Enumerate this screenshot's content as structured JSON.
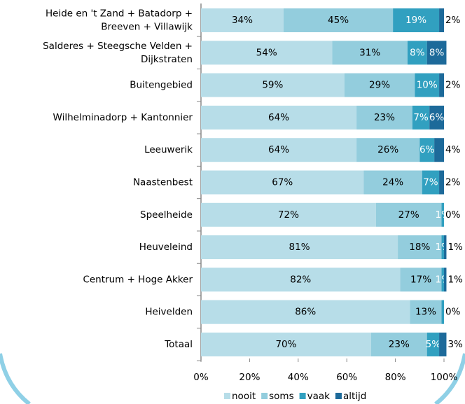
{
  "chart_data": {
    "type": "stacked-bar-horizontal",
    "categories": [
      "Heide en 't Zand + Batadorp +\nBreeven + Villawijk",
      "Salderes + Steegsche Velden +\nDijkstraten",
      "Buitengebied",
      "Wilhelminadorp + Kantonnier",
      "Leeuwerik",
      "Naastenbest",
      "Speelheide",
      "Heuveleind",
      "Centrum + Hoge Akker",
      "Heivelden",
      "Totaal"
    ],
    "series": [
      {
        "name": "nooit",
        "color": "#b7dde8",
        "values": [
          34,
          54,
          59,
          64,
          64,
          67,
          72,
          81,
          82,
          86,
          70
        ],
        "value_labels": [
          "34%",
          "54%",
          "59%",
          "64%",
          "64%",
          "67%",
          "72%",
          "81%",
          "82%",
          "86%",
          "70%"
        ]
      },
      {
        "name": "soms",
        "color": "#93cddd",
        "values": [
          45,
          31,
          29,
          23,
          26,
          24,
          27,
          18,
          17,
          13,
          23
        ],
        "value_labels": [
          "45%",
          "31%",
          "29%",
          "23%",
          "26%",
          "24%",
          "27%",
          "18%",
          "17%",
          "13%",
          "23%"
        ]
      },
      {
        "name": "vaak",
        "color": "#31a0c0",
        "values": [
          19,
          8,
          10,
          7,
          6,
          7,
          1,
          1,
          1,
          1,
          5
        ],
        "value_labels": [
          "19%",
          "8%",
          "10%",
          "7%",
          "6%",
          "7%",
          "1%",
          "1%",
          "1%",
          null,
          "5%"
        ]
      },
      {
        "name": "altijd",
        "color": "#1d6a9a",
        "values": [
          2,
          8,
          2,
          6,
          4,
          2,
          0,
          1,
          1,
          0,
          3
        ],
        "value_labels": [
          "2%",
          "8%",
          "2%",
          "6%",
          "4%",
          "2%",
          "0%",
          "1%",
          "1%",
          "0%",
          "3%"
        ]
      }
    ],
    "xlim": [
      0,
      100
    ],
    "xticks": [
      {
        "value": 0,
        "label": "0%"
      },
      {
        "value": 20,
        "label": "20%"
      },
      {
        "value": 40,
        "label": "40%"
      },
      {
        "value": 60,
        "label": "60%"
      },
      {
        "value": 80,
        "label": "80%"
      },
      {
        "value": 100,
        "label": "100%"
      }
    ],
    "legend": "bottom"
  }
}
